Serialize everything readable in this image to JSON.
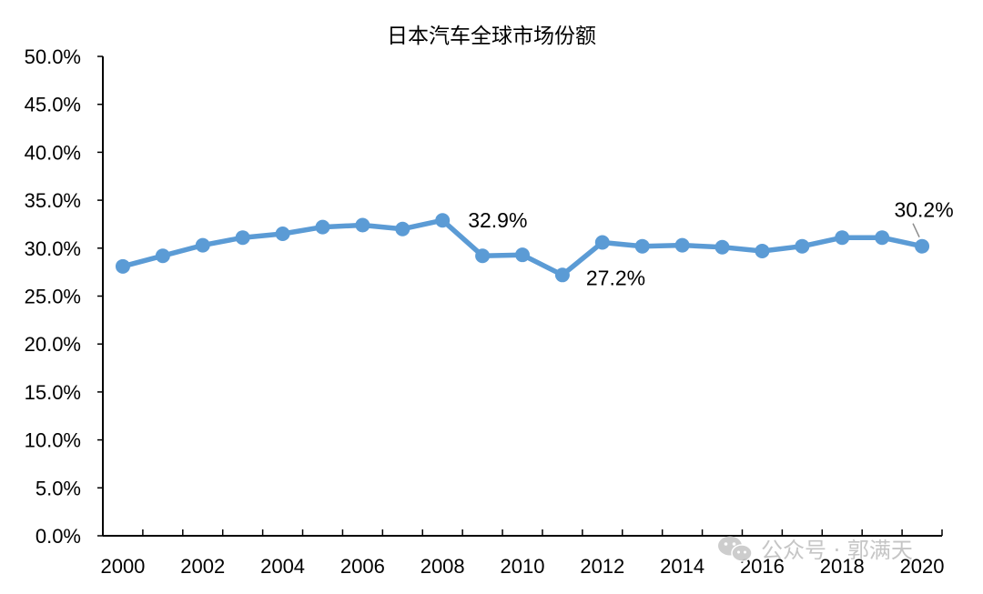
{
  "chart_data": {
    "type": "line",
    "title": "日本汽车全球市场份额",
    "xlabel": "",
    "ylabel": "",
    "x": [
      2000,
      2001,
      2002,
      2003,
      2004,
      2005,
      2006,
      2007,
      2008,
      2009,
      2010,
      2011,
      2012,
      2013,
      2014,
      2015,
      2016,
      2017,
      2018,
      2019,
      2020
    ],
    "series": [
      {
        "values": [
          28.1,
          29.2,
          30.3,
          31.1,
          31.5,
          32.2,
          32.4,
          32.0,
          32.9,
          29.2,
          29.3,
          27.2,
          30.6,
          30.2,
          30.3,
          30.1,
          29.7,
          30.2,
          31.1,
          31.1,
          30.2
        ],
        "color": "#5b9bd5"
      }
    ],
    "x_tick_labels": [
      "2000",
      "2002",
      "2004",
      "2006",
      "2008",
      "2010",
      "2012",
      "2014",
      "2016",
      "2018",
      "2020"
    ],
    "y_tick_labels": [
      "0.0%",
      "5.0%",
      "10.0%",
      "15.0%",
      "20.0%",
      "25.0%",
      "30.0%",
      "35.0%",
      "40.0%",
      "45.0%",
      "50.0%"
    ],
    "ylim": [
      0,
      50
    ],
    "y_step": 5,
    "annotations": [
      {
        "x": 2008,
        "y": 32.9,
        "text": "32.9%",
        "position": "right-above"
      },
      {
        "x": 2011,
        "y": 27.2,
        "text": "27.2%",
        "position": "right-below"
      },
      {
        "x": 2020,
        "y": 30.2,
        "text": "30.2%",
        "position": "above-with-leader"
      }
    ],
    "grid": false,
    "legend": "none"
  },
  "watermark": {
    "text": "公众号 · 郭满天",
    "icon": "wechat-icon"
  }
}
